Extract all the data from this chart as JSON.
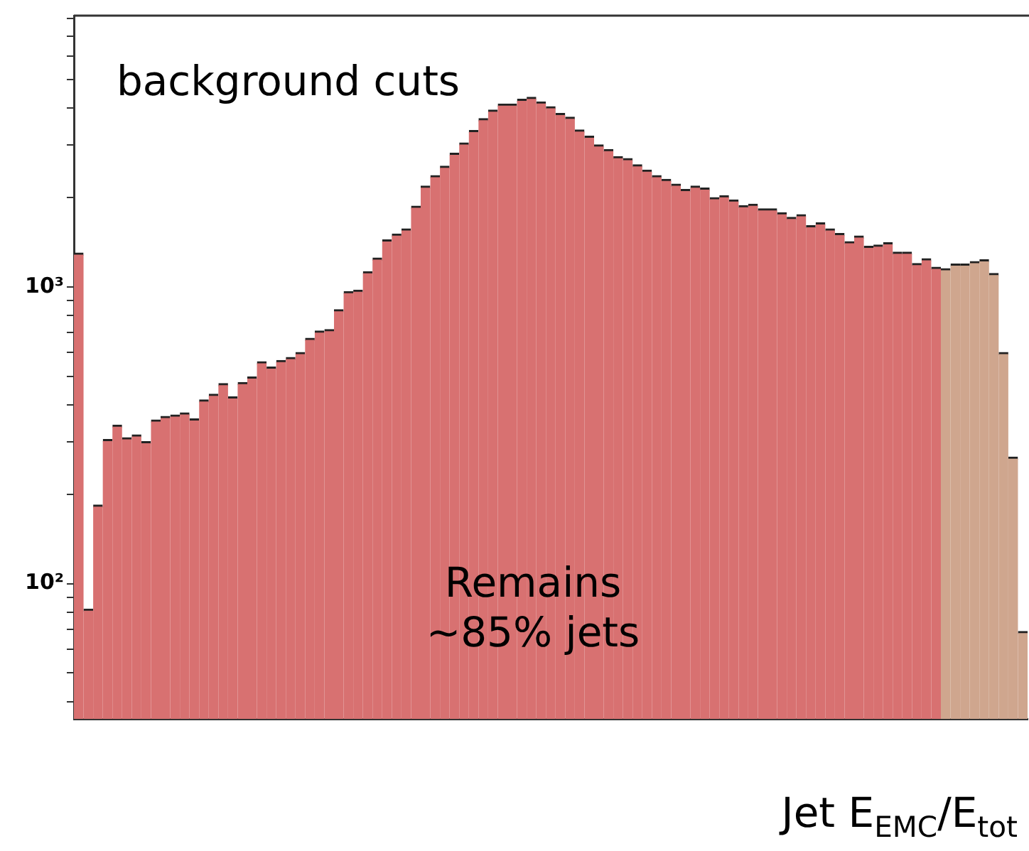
{
  "chart_data": {
    "type": "bar",
    "xlabel": "Jet E$_{EMC}$/E$_{tot}$",
    "annotations": [
      "background cuts",
      "Remains ~85% jets"
    ],
    "categories": [
      null,
      null,
      null,
      null,
      null,
      null,
      null,
      null,
      null,
      null,
      null,
      null,
      null,
      null,
      null,
      null,
      null,
      null,
      null,
      null,
      null,
      null,
      null,
      null,
      null,
      null,
      null,
      null,
      null,
      null,
      null,
      null,
      null,
      null,
      null,
      null,
      null,
      null,
      null,
      null,
      null,
      null,
      null,
      null,
      null,
      null,
      null,
      null,
      null,
      null,
      null,
      null,
      null,
      null,
      null,
      null,
      null,
      null,
      null,
      null,
      null,
      null,
      null,
      null,
      null,
      null,
      null,
      null,
      null,
      null,
      null,
      null,
      null,
      null,
      null,
      null,
      null,
      null,
      null,
      null,
      null,
      null,
      null,
      null,
      null,
      null,
      null,
      null,
      null,
      null,
      null,
      null,
      null,
      null,
      null,
      null,
      null,
      null,
      null
    ],
    "series": [
      {
        "color": "#d87171",
        "values": [
          1300,
          82,
          184,
          306,
          342,
          310,
          317,
          301,
          356,
          366,
          370,
          376,
          359,
          416,
          435,
          472,
          426,
          476,
          497,
          559,
          537,
          565,
          578,
          601,
          671,
          710,
          718,
          838,
          964,
          975,
          1125,
          1250,
          1440,
          1506,
          1568,
          1870,
          2185,
          2369,
          2551,
          2820,
          3055,
          3363,
          3687,
          3939,
          4132,
          4132,
          4285,
          4352,
          4198,
          4045,
          3840,
          3728,
          3376,
          3217,
          3010,
          2904,
          2748,
          2705,
          2578,
          2475,
          2369,
          2302,
          2218,
          2128,
          2184,
          2153,
          1999,
          2029,
          1963,
          1878,
          1898,
          1831,
          1831,
          1778,
          1714,
          1751,
          1607,
          1643,
          1568,
          1512,
          1420,
          1483,
          1369,
          1384,
          1408,
          1309,
          1309,
          1199,
          1244,
          1164,
          null,
          null,
          null,
          null,
          null,
          null,
          null,
          null,
          null
        ]
      },
      {
        "color": "#cfa68e",
        "values": [
          null,
          null,
          null,
          null,
          null,
          null,
          null,
          null,
          null,
          null,
          null,
          null,
          null,
          null,
          null,
          null,
          null,
          null,
          null,
          null,
          null,
          null,
          null,
          null,
          null,
          null,
          null,
          null,
          null,
          null,
          null,
          null,
          null,
          null,
          null,
          null,
          null,
          null,
          null,
          null,
          null,
          null,
          null,
          null,
          null,
          null,
          null,
          null,
          null,
          null,
          null,
          null,
          null,
          null,
          null,
          null,
          null,
          null,
          null,
          null,
          null,
          null,
          null,
          null,
          null,
          null,
          null,
          null,
          null,
          null,
          null,
          null,
          null,
          null,
          null,
          null,
          null,
          null,
          null,
          null,
          null,
          null,
          null,
          null,
          null,
          null,
          null,
          null,
          null,
          null,
          1151,
          1194,
          1194,
          1216,
          1234,
          1109,
          601,
          267,
          69
        ]
      }
    ],
    "log": true,
    "ylim": [
      35,
      8200
    ],
    "yticks": [
      {
        "value": 40,
        "label": null
      },
      {
        "value": 50,
        "label": null
      },
      {
        "value": 60,
        "label": null
      },
      {
        "value": 70,
        "label": null
      },
      {
        "value": 80,
        "label": null
      },
      {
        "value": 90,
        "label": null
      },
      {
        "value": 100,
        "label": "10²"
      },
      {
        "value": 200,
        "label": null
      },
      {
        "value": 300,
        "label": null
      },
      {
        "value": 400,
        "label": null
      },
      {
        "value": 500,
        "label": null
      },
      {
        "value": 600,
        "label": null
      },
      {
        "value": 700,
        "label": null
      },
      {
        "value": 800,
        "label": null
      },
      {
        "value": 900,
        "label": null
      },
      {
        "value": 1000,
        "label": "10³"
      },
      {
        "value": 2000,
        "label": null
      },
      {
        "value": 3000,
        "label": null
      },
      {
        "value": 4000,
        "label": null
      },
      {
        "value": 5000,
        "label": null
      },
      {
        "value": 6000,
        "label": null
      },
      {
        "value": 7000,
        "label": null
      },
      {
        "value": 8000,
        "label": null
      }
    ]
  }
}
